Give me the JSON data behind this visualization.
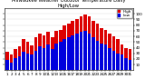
{
  "title": "Milwaukee Weather Outdoor Temperature Daily High/Low",
  "title_fontsize": 3.8,
  "background_color": "#ffffff",
  "plot_bg_color": "#ffffff",
  "bar_width": 0.8,
  "ylim": [
    0,
    110
  ],
  "yticks": [
    10,
    20,
    30,
    40,
    50,
    60,
    70,
    80,
    90,
    100
  ],
  "ytick_fontsize": 3.0,
  "xtick_fontsize": 2.8,
  "legend_fontsize": 3.0,
  "high_color": "#dd0000",
  "low_color": "#0000dd",
  "days": [
    1,
    2,
    3,
    4,
    5,
    6,
    7,
    8,
    9,
    10,
    11,
    12,
    13,
    14,
    15,
    16,
    17,
    18,
    19,
    20,
    21,
    22,
    23,
    24,
    25,
    26,
    27,
    28,
    29,
    30,
    31
  ],
  "highs": [
    32,
    28,
    38,
    42,
    55,
    50,
    44,
    58,
    65,
    62,
    68,
    58,
    70,
    72,
    80,
    82,
    88,
    90,
    95,
    98,
    95,
    88,
    82,
    75,
    72,
    65,
    60,
    55,
    45,
    40,
    38
  ],
  "lows": [
    18,
    14,
    22,
    25,
    32,
    30,
    28,
    35,
    42,
    40,
    45,
    38,
    48,
    50,
    55,
    58,
    62,
    65,
    68,
    70,
    65,
    58,
    52,
    48,
    45,
    40,
    35,
    30,
    28,
    22,
    18
  ]
}
